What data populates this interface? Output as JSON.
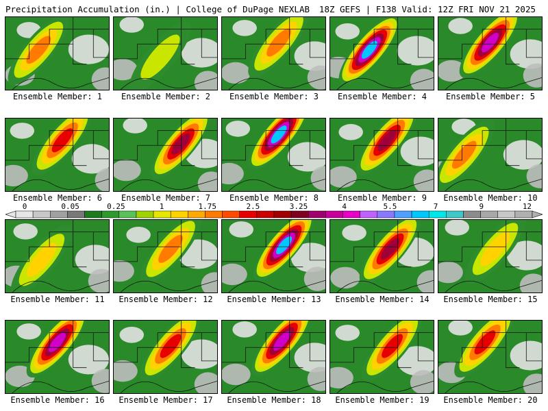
{
  "header": {
    "left": "Precipitation Accumulation (in.) | College of DuPage NEXLAB",
    "right": "18Z GEFS | F138 Valid: 12Z FRI NOV 21 2025"
  },
  "members": [
    {
      "label": "Ensemble Member: 1",
      "max": 3.0,
      "core": [
        0.32,
        0.45
      ]
    },
    {
      "label": "Ensemble Member: 2",
      "max": 1.5,
      "core": [
        0.45,
        0.55
      ]
    },
    {
      "label": "Ensemble Member: 3",
      "max": 3.0,
      "core": [
        0.55,
        0.35
      ]
    },
    {
      "label": "Ensemble Member: 4",
      "max": 7.0,
      "core": [
        0.38,
        0.45
      ]
    },
    {
      "label": "Ensemble Member: 5",
      "max": 5.5,
      "core": [
        0.5,
        0.35
      ]
    },
    {
      "label": "Ensemble Member: 6",
      "max": 3.25,
      "core": [
        0.55,
        0.3
      ]
    },
    {
      "label": "Ensemble Member: 7",
      "max": 4.0,
      "core": [
        0.65,
        0.35
      ]
    },
    {
      "label": "Ensemble Member: 8",
      "max": 7.0,
      "core": [
        0.55,
        0.22
      ]
    },
    {
      "label": "Ensemble Member: 9",
      "max": 4.0,
      "core": [
        0.55,
        0.3
      ]
    },
    {
      "label": "Ensemble Member: 10",
      "max": 2.5,
      "core": [
        0.25,
        0.5
      ]
    },
    {
      "label": "Ensemble Member: 11",
      "max": 1.75,
      "core": [
        0.35,
        0.55
      ]
    },
    {
      "label": "Ensemble Member: 12",
      "max": 2.5,
      "core": [
        0.55,
        0.4
      ]
    },
    {
      "label": "Ensemble Member: 13",
      "max": 7.0,
      "core": [
        0.6,
        0.35
      ]
    },
    {
      "label": "Ensemble Member: 14",
      "max": 4.0,
      "core": [
        0.58,
        0.4
      ]
    },
    {
      "label": "Ensemble Member: 15",
      "max": 1.75,
      "core": [
        0.55,
        0.4
      ]
    },
    {
      "label": "Ensemble Member: 16",
      "max": 5.5,
      "core": [
        0.5,
        0.3
      ]
    },
    {
      "label": "Ensemble Member: 17",
      "max": 3.25,
      "core": [
        0.55,
        0.35
      ]
    },
    {
      "label": "Ensemble Member: 18",
      "max": 5.5,
      "core": [
        0.58,
        0.28
      ]
    },
    {
      "label": "Ensemble Member: 19",
      "max": 3.25,
      "core": [
        0.6,
        0.35
      ]
    },
    {
      "label": "Ensemble Member: 20",
      "max": 3.25,
      "core": [
        0.45,
        0.3
      ]
    }
  ],
  "colorbar": {
    "labels": [
      "0",
      "0.05",
      "0.25",
      "1",
      "1.75",
      "2.5",
      "3.25",
      "4",
      "5.5",
      "7",
      "9",
      "12"
    ],
    "colors": [
      "#e6e6e6",
      "#c8c8c8",
      "#a0a0a0",
      "#787878",
      "#1e7a1e",
      "#2e9a2e",
      "#5ac05a",
      "#a0d200",
      "#e6e600",
      "#ffd200",
      "#ffaa00",
      "#ff7a00",
      "#ff4a00",
      "#e60000",
      "#c80000",
      "#a00000",
      "#800020",
      "#a0006a",
      "#c8009a",
      "#e600c8",
      "#c060ff",
      "#8a78ff",
      "#50a0ff",
      "#00c8ff",
      "#00e6e6",
      "#40c8c8",
      "#8c8c8c",
      "#a8a8a8",
      "#c8c8c8",
      "#b0b0b0"
    ]
  }
}
